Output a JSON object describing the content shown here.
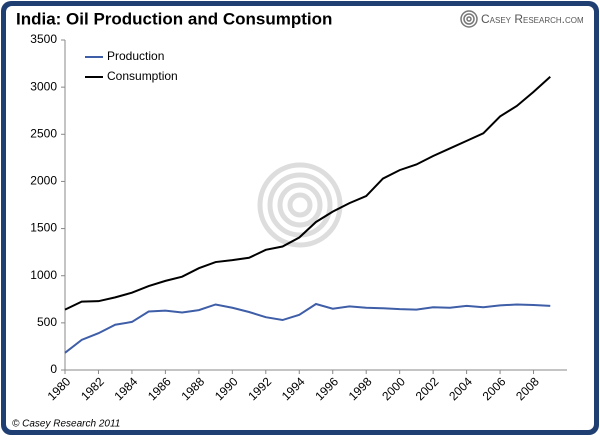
{
  "chart_data": {
    "type": "line",
    "title": "India: Oil Production and Consumption",
    "logo": "Casey Research.com",
    "footer": "© Casey Research 2011",
    "x": [
      1980,
      1981,
      1982,
      1983,
      1984,
      1985,
      1986,
      1987,
      1988,
      1989,
      1990,
      1991,
      1992,
      1993,
      1994,
      1995,
      1996,
      1997,
      1998,
      1999,
      2000,
      2001,
      2002,
      2003,
      2004,
      2005,
      2006,
      2007,
      2008,
      2009
    ],
    "xlim": [
      1980,
      2010
    ],
    "xticks": [
      1980,
      1982,
      1984,
      1986,
      1988,
      1990,
      1992,
      1994,
      1996,
      1998,
      2000,
      2002,
      2004,
      2006,
      2008
    ],
    "ylim": [
      0,
      3500
    ],
    "yticks": [
      0,
      500,
      1000,
      1500,
      2000,
      2500,
      3000,
      3500
    ],
    "legend": "top-left",
    "series": [
      {
        "name": "Production",
        "color": "#3f5ea8",
        "values": [
          182,
          320,
          390,
          480,
          510,
          620,
          630,
          610,
          635,
          695,
          660,
          615,
          560,
          530,
          585,
          700,
          650,
          675,
          660,
          655,
          645,
          640,
          665,
          660,
          680,
          665,
          685,
          695,
          690,
          680
        ]
      },
      {
        "name": "Consumption",
        "color": "#000000",
        "values": [
          640,
          725,
          730,
          770,
          820,
          890,
          945,
          990,
          1080,
          1145,
          1165,
          1190,
          1275,
          1310,
          1405,
          1570,
          1680,
          1770,
          1845,
          2030,
          2120,
          2180,
          2270,
          2350,
          2430,
          2510,
          2690,
          2800,
          2950,
          3110
        ]
      }
    ]
  }
}
